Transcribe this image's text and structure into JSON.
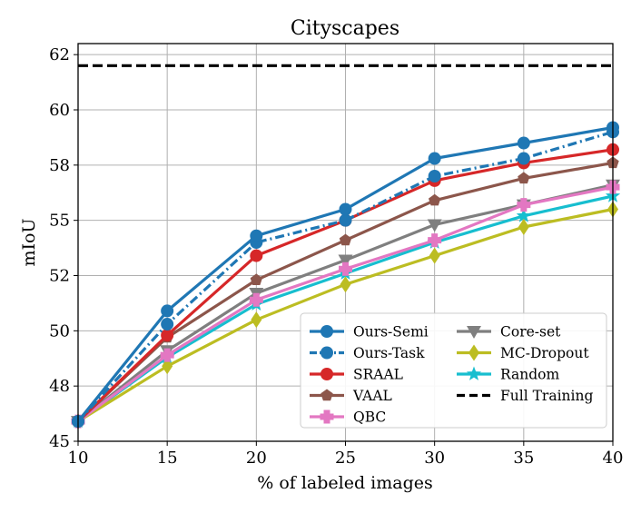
{
  "chart_data": {
    "type": "line",
    "title": "Cityscapes",
    "xlabel": "% of labeled images",
    "ylabel": "mIoU",
    "x": [
      10,
      15,
      20,
      25,
      30,
      35,
      40
    ],
    "xlim": [
      10,
      40
    ],
    "ylim": [
      45,
      63
    ],
    "x_ticks": [
      10,
      15,
      20,
      25,
      30,
      35,
      40
    ],
    "x_tick_labels": [
      "10",
      "15",
      "20",
      "25",
      "30",
      "35",
      "40"
    ],
    "y_ticks": [
      45,
      47.5,
      50,
      52.5,
      55,
      57.5,
      60,
      62.5
    ],
    "y_tick_labels": [
      "45",
      "48",
      "50",
      "52",
      "55",
      "58",
      "60",
      "62"
    ],
    "grid": true,
    "legend_position": "lower-right",
    "series": [
      {
        "name": "Ours-Semi",
        "color": "#1f77b4",
        "linestyle": "solid",
        "marker": "circle",
        "values": [
          45.9,
          50.9,
          54.3,
          55.5,
          57.8,
          58.5,
          59.2
        ]
      },
      {
        "name": "Ours-Task",
        "color": "#1f77b4",
        "linestyle": "dashdot",
        "marker": "circle",
        "values": [
          45.9,
          50.3,
          54.0,
          55.0,
          57.0,
          57.8,
          59.0
        ]
      },
      {
        "name": "SRAAL",
        "color": "#d62728",
        "linestyle": "solid",
        "marker": "circle",
        "values": [
          45.9,
          49.8,
          53.4,
          55.0,
          56.8,
          57.6,
          58.2
        ]
      },
      {
        "name": "VAAL",
        "color": "#8c564b",
        "linestyle": "solid",
        "marker": "pentagon",
        "values": [
          45.9,
          49.7,
          52.3,
          54.1,
          55.9,
          56.9,
          57.6
        ]
      },
      {
        "name": "QBC",
        "color": "#e377c2",
        "linestyle": "solid",
        "marker": "plus",
        "values": [
          45.9,
          48.9,
          51.4,
          52.8,
          54.1,
          55.7,
          56.5
        ]
      },
      {
        "name": "Core-set",
        "color": "#7f7f7f",
        "linestyle": "solid",
        "marker": "triangle-down",
        "values": [
          45.9,
          49.1,
          51.7,
          53.2,
          54.8,
          55.7,
          56.6
        ]
      },
      {
        "name": "MC-Dropout",
        "color": "#bcbd22",
        "linestyle": "solid",
        "marker": "diamond",
        "values": [
          45.9,
          48.4,
          50.5,
          52.1,
          53.4,
          54.7,
          55.5
        ]
      },
      {
        "name": "Random",
        "color": "#17becf",
        "linestyle": "solid",
        "marker": "star",
        "values": [
          45.9,
          48.8,
          51.2,
          52.6,
          54.0,
          55.2,
          56.1
        ]
      },
      {
        "name": "Full Training",
        "color": "#000000",
        "linestyle": "dashed",
        "marker": "none",
        "values": [
          62.0,
          62.0,
          62.0,
          62.0,
          62.0,
          62.0,
          62.0
        ]
      }
    ]
  }
}
